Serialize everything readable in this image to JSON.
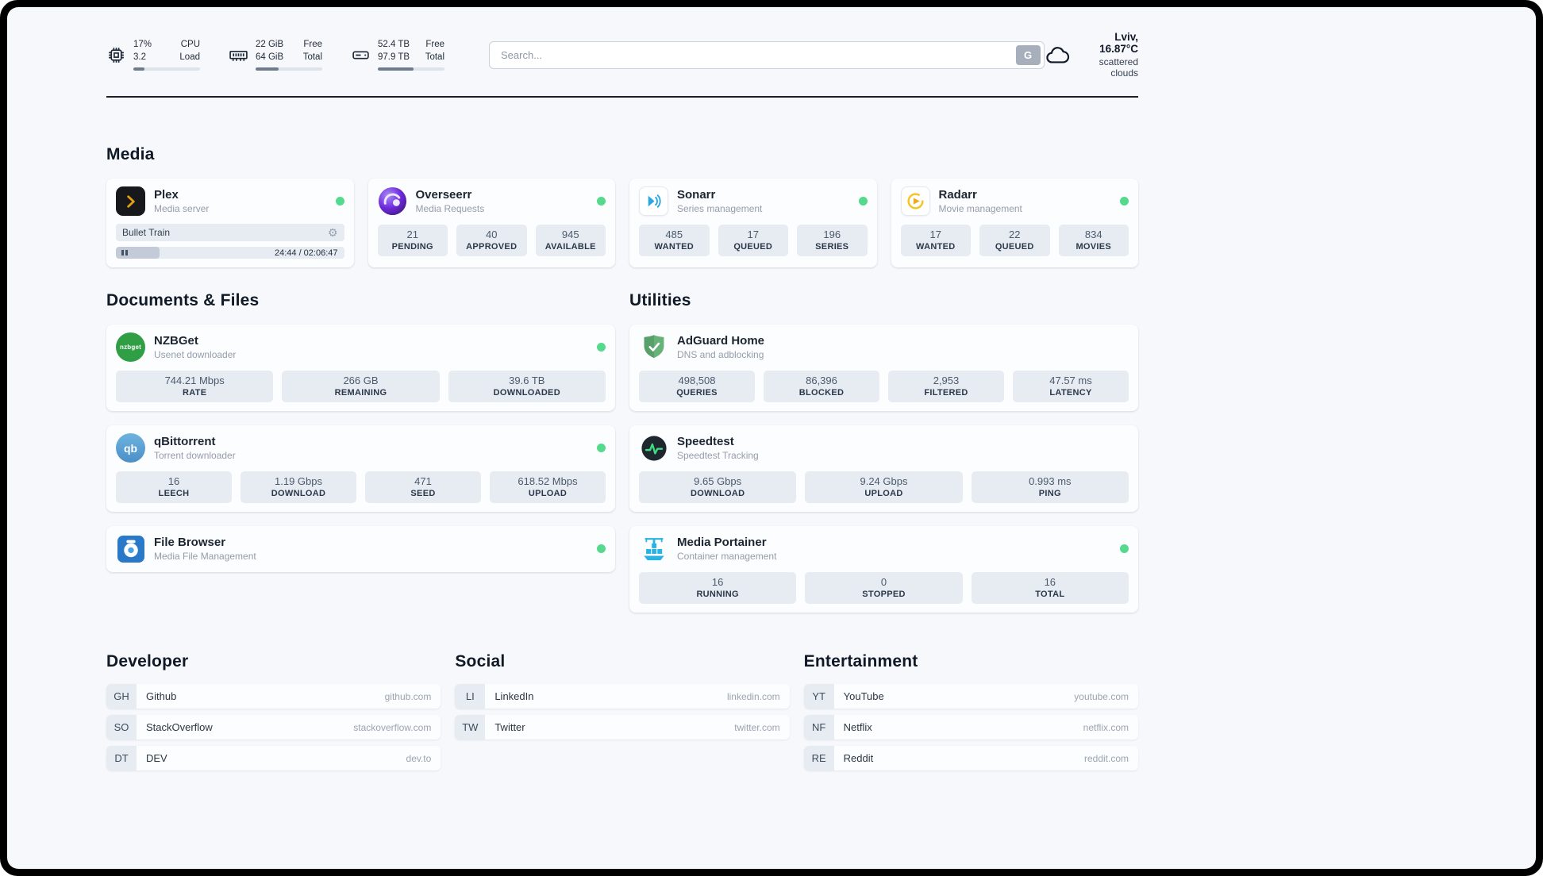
{
  "colors": {
    "status_online": "#55d98c",
    "plex_accent": "#e5a00d",
    "page_background": "#f6f8fb",
    "tile_background": "#e7ecf3"
  },
  "header": {
    "cpu": {
      "value_top": "17%",
      "value_bottom": "3.2",
      "label_top": "CPU",
      "label_bottom": "Load",
      "percent": 17
    },
    "memory": {
      "value_top": "22 GiB",
      "value_bottom": "64 GiB",
      "label_top": "Free",
      "label_bottom": "Total",
      "percent": 34
    },
    "disk": {
      "value_top": "52.4 TB",
      "value_bottom": "97.9 TB",
      "label_top": "Free",
      "label_bottom": "Total",
      "percent": 53
    },
    "search": {
      "placeholder": "Search...",
      "button_label": "G"
    },
    "weather": {
      "location": "Lviv, 16.87°C",
      "condition": "scattered clouds"
    }
  },
  "sections": {
    "media": {
      "title": "Media",
      "plex": {
        "name": "Plex",
        "subtitle": "Media server",
        "now_playing": "Bullet Train",
        "time": "24:44 / 02:06:47",
        "progress_percent": 19
      },
      "overseerr": {
        "name": "Overseerr",
        "subtitle": "Media Requests",
        "stats": [
          {
            "value": "21",
            "label": "PENDING"
          },
          {
            "value": "40",
            "label": "APPROVED"
          },
          {
            "value": "945",
            "label": "AVAILABLE"
          }
        ]
      },
      "sonarr": {
        "name": "Sonarr",
        "subtitle": "Series management",
        "stats": [
          {
            "value": "485",
            "label": "WANTED"
          },
          {
            "value": "17",
            "label": "QUEUED"
          },
          {
            "value": "196",
            "label": "SERIES"
          }
        ]
      },
      "radarr": {
        "name": "Radarr",
        "subtitle": "Movie management",
        "stats": [
          {
            "value": "17",
            "label": "WANTED"
          },
          {
            "value": "22",
            "label": "QUEUED"
          },
          {
            "value": "834",
            "label": "MOVIES"
          }
        ]
      }
    },
    "documents": {
      "title": "Documents & Files",
      "nzbget": {
        "name": "NZBGet",
        "subtitle": "Usenet downloader",
        "icon_text": "nzbget",
        "stats": [
          {
            "value": "744.21 Mbps",
            "label": "RATE"
          },
          {
            "value": "266 GB",
            "label": "REMAINING"
          },
          {
            "value": "39.6 TB",
            "label": "DOWNLOADED"
          }
        ]
      },
      "qbittorrent": {
        "name": "qBittorrent",
        "subtitle": "Torrent downloader",
        "icon_text": "qb",
        "stats": [
          {
            "value": "16",
            "label": "LEECH"
          },
          {
            "value": "1.19 Gbps",
            "label": "DOWNLOAD"
          },
          {
            "value": "471",
            "label": "SEED"
          },
          {
            "value": "618.52 Mbps",
            "label": "UPLOAD"
          }
        ]
      },
      "filebrowser": {
        "name": "File Browser",
        "subtitle": "Media File Management"
      }
    },
    "utilities": {
      "title": "Utilities",
      "adguard": {
        "name": "AdGuard Home",
        "subtitle": "DNS and adblocking",
        "stats": [
          {
            "value": "498,508",
            "label": "QUERIES"
          },
          {
            "value": "86,396",
            "label": "BLOCKED"
          },
          {
            "value": "2,953",
            "label": "FILTERED"
          },
          {
            "value": "47.57 ms",
            "label": "LATENCY"
          }
        ]
      },
      "speedtest": {
        "name": "Speedtest",
        "subtitle": "Speedtest Tracking",
        "stats": [
          {
            "value": "9.65 Gbps",
            "label": "DOWNLOAD"
          },
          {
            "value": "9.24 Gbps",
            "label": "UPLOAD"
          },
          {
            "value": "0.993 ms",
            "label": "PING"
          }
        ]
      },
      "portainer": {
        "name": "Media Portainer",
        "subtitle": "Container management",
        "stats": [
          {
            "value": "16",
            "label": "RUNNING"
          },
          {
            "value": "0",
            "label": "STOPPED"
          },
          {
            "value": "16",
            "label": "TOTAL"
          }
        ]
      }
    },
    "bookmarks": {
      "developer": {
        "title": "Developer",
        "items": [
          {
            "abbr": "GH",
            "name": "Github",
            "url": "github.com"
          },
          {
            "abbr": "SO",
            "name": "StackOverflow",
            "url": "stackoverflow.com"
          },
          {
            "abbr": "DT",
            "name": "DEV",
            "url": "dev.to"
          }
        ]
      },
      "social": {
        "title": "Social",
        "items": [
          {
            "abbr": "LI",
            "name": "LinkedIn",
            "url": "linkedin.com"
          },
          {
            "abbr": "TW",
            "name": "Twitter",
            "url": "twitter.com"
          }
        ]
      },
      "entertainment": {
        "title": "Entertainment",
        "items": [
          {
            "abbr": "YT",
            "name": "YouTube",
            "url": "youtube.com"
          },
          {
            "abbr": "NF",
            "name": "Netflix",
            "url": "netflix.com"
          },
          {
            "abbr": "RE",
            "name": "Reddit",
            "url": "reddit.com"
          }
        ]
      }
    }
  }
}
